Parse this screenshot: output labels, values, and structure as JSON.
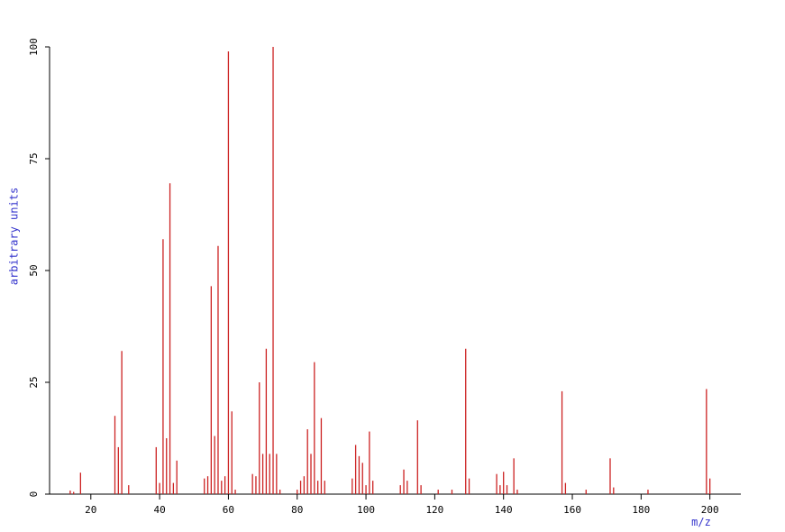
{
  "chart_data": {
    "type": "stem",
    "x_label": "m/z",
    "y_label": "arbitrary units",
    "color": "#cc2222",
    "x": [
      14,
      15,
      17,
      27,
      28,
      29,
      31,
      39,
      40,
      41,
      42,
      43,
      44,
      45,
      53,
      54,
      55,
      56,
      57,
      58,
      59,
      60,
      61,
      62,
      67,
      68,
      69,
      70,
      71,
      72,
      73,
      74,
      75,
      80,
      81,
      82,
      83,
      84,
      85,
      86,
      87,
      88,
      96,
      97,
      98,
      99,
      100,
      101,
      102,
      110,
      111,
      112,
      115,
      116,
      121,
      125,
      129,
      130,
      138,
      139,
      140,
      141,
      143,
      144,
      157,
      158,
      164,
      171,
      172,
      182,
      199,
      200
    ],
    "values": [
      0.8,
      0.5,
      4.8,
      17.5,
      10.5,
      32,
      2,
      10.5,
      2.5,
      57,
      12.5,
      69.5,
      2.5,
      7.5,
      3.5,
      4,
      46.5,
      13,
      55.5,
      3,
      4,
      99,
      18.5,
      1,
      4.5,
      4,
      25,
      9,
      32.5,
      9,
      100,
      9,
      1,
      1,
      3,
      4,
      14.5,
      9,
      29.5,
      3,
      17,
      3,
      3.5,
      11,
      8.5,
      7,
      2,
      14,
      3,
      2,
      5.5,
      3,
      16.5,
      2,
      1,
      1,
      32.5,
      3.5,
      4.5,
      2,
      5,
      2,
      8,
      1,
      23,
      2.5,
      1,
      8,
      1.5,
      1,
      23.5,
      3.5
    ],
    "xlim": [
      8,
      209
    ],
    "xticks": [
      20,
      40,
      60,
      80,
      100,
      120,
      140,
      160,
      180,
      200
    ],
    "ylim": [
      0,
      100
    ],
    "yticks": [
      0,
      25,
      50,
      75,
      100
    ]
  }
}
